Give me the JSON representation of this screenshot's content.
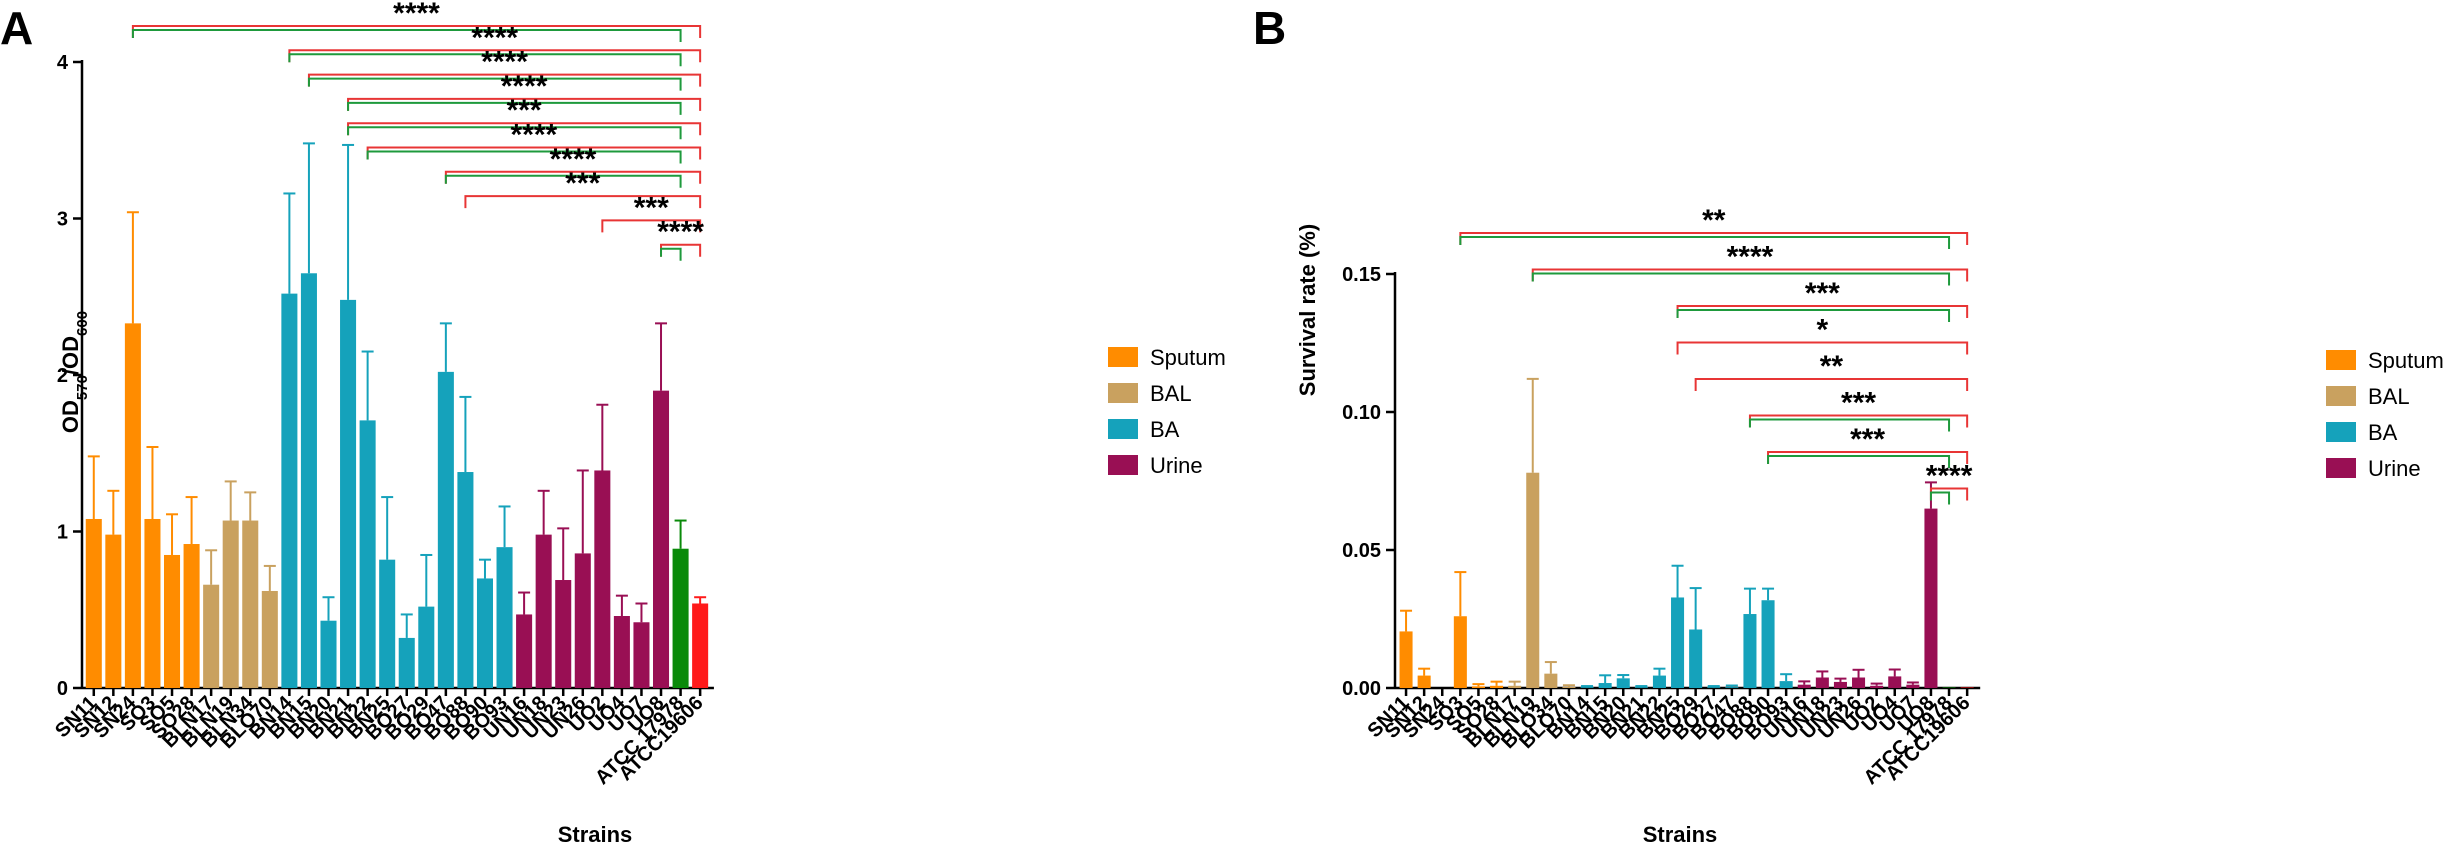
{
  "chart_data": [
    {
      "type": "bar",
      "panel": "A",
      "title": "",
      "xlabel": "Strains",
      "ylabel_main": "OD",
      "ylabel_sub1": "570",
      "ylabel_sep": "/OD",
      "ylabel_sub2": "600",
      "ylim": [
        0,
        4
      ],
      "yticks": [
        0,
        1,
        2,
        3,
        4
      ],
      "ytick_labels": [
        "0",
        "1",
        "2",
        "3",
        "4"
      ],
      "categories": [
        "SN11",
        "SN12",
        "SN24",
        "SO3",
        "SO5",
        "SO28",
        "BLN17",
        "BLN19",
        "BLN34",
        "BLO70",
        "BN14",
        "BN15",
        "BN20",
        "BN21",
        "BN22",
        "BN25",
        "BO27",
        "BO29",
        "BO47",
        "BO88",
        "BO90",
        "BO93",
        "UN16",
        "UN18",
        "UN23",
        "UN26",
        "UO2",
        "UO4",
        "UO7",
        "UO8",
        "ATCC 17978",
        "ATCC19606"
      ],
      "values": [
        1.08,
        0.98,
        2.33,
        1.08,
        0.85,
        0.92,
        0.66,
        1.07,
        1.07,
        0.62,
        2.52,
        2.65,
        0.43,
        2.48,
        1.71,
        0.82,
        0.32,
        0.52,
        2.02,
        1.38,
        0.7,
        0.9,
        0.47,
        0.98,
        0.69,
        0.86,
        1.39,
        0.46,
        0.42,
        1.9,
        0.89,
        0.54
      ],
      "errors": [
        0.4,
        0.28,
        0.71,
        0.46,
        0.26,
        0.3,
        0.22,
        0.25,
        0.18,
        0.16,
        0.64,
        0.83,
        0.15,
        0.99,
        0.44,
        0.4,
        0.15,
        0.33,
        0.31,
        0.48,
        0.12,
        0.26,
        0.14,
        0.28,
        0.33,
        0.53,
        0.42,
        0.13,
        0.12,
        0.43,
        0.18,
        0.04
      ],
      "groups": [
        "Sputum",
        "Sputum",
        "Sputum",
        "Sputum",
        "Sputum",
        "Sputum",
        "BAL",
        "BAL",
        "BAL",
        "BAL",
        "BA",
        "BA",
        "BA",
        "BA",
        "BA",
        "BA",
        "BA",
        "BA",
        "BA",
        "BA",
        "BA",
        "BA",
        "Urine",
        "Urine",
        "Urine",
        "Urine",
        "Urine",
        "Urine",
        "Urine",
        "Urine",
        "Control1",
        "Control2"
      ],
      "significance": [
        {
          "from": "SN24",
          "label": "****",
          "green": true
        },
        {
          "from": "BN14",
          "label": "****",
          "green": true
        },
        {
          "from": "BN15",
          "label": "****",
          "green": true
        },
        {
          "from": "BN21",
          "label": "****",
          "green": true
        },
        {
          "from": "BN21",
          "label": "***",
          "green": true
        },
        {
          "from": "BN22",
          "label": "****",
          "green": true
        },
        {
          "from": "BO47",
          "label": "****",
          "green": true
        },
        {
          "from": "BO88",
          "label": "***",
          "green": false
        },
        {
          "from": "UO2",
          "label": "***",
          "green": false
        },
        {
          "from": "UO8",
          "label": "****",
          "green": true
        }
      ]
    },
    {
      "type": "bar",
      "panel": "B",
      "title": "",
      "xlabel": "Strains",
      "ylabel": "Survival rate (%)",
      "ylim": [
        0,
        0.15
      ],
      "yticks": [
        0,
        0.05,
        0.1,
        0.15
      ],
      "ytick_labels": [
        "0.00",
        "0.05",
        "0.10",
        "0.15"
      ],
      "categories": [
        "SN11",
        "SN12",
        "SN24",
        "SO3",
        "SO5",
        "SO28",
        "BLN17",
        "BLN19",
        "BLO34",
        "BLO70",
        "BN14",
        "BN15",
        "BN20",
        "BN21",
        "BN22",
        "BN25",
        "BO29",
        "BO27",
        "BO47",
        "BO88",
        "BO90",
        "BO93",
        "UN16",
        "UN18",
        "UN23",
        "UN26",
        "UO2",
        "UO4",
        "UO7",
        "UO8",
        "ATCC 17978",
        "ATCC19606"
      ],
      "values": [
        0.0205,
        0.0045,
        0.0,
        0.026,
        0.0006,
        0.0008,
        0.0008,
        0.078,
        0.0052,
        0.0004,
        0.0003,
        0.0018,
        0.0035,
        0.0003,
        0.0045,
        0.0328,
        0.0212,
        0.0003,
        0.0003,
        0.0268,
        0.0318,
        0.0025,
        0.0012,
        0.0038,
        0.0022,
        0.0038,
        0.0008,
        0.0042,
        0.0012,
        0.065,
        0.0002,
        0.0002
      ],
      "errors": [
        0.0075,
        0.0025,
        0.0,
        0.016,
        0.0008,
        0.0015,
        0.0015,
        0.034,
        0.0042,
        0.0006,
        0.0004,
        0.0028,
        0.0012,
        0.0004,
        0.0025,
        0.0115,
        0.015,
        0.0004,
        0.0006,
        0.0092,
        0.0042,
        0.0025,
        0.0012,
        0.0022,
        0.0012,
        0.0028,
        0.0008,
        0.0025,
        0.0008,
        0.0095,
        0.0,
        0.0
      ],
      "groups": [
        "Sputum",
        "Sputum",
        "Sputum",
        "Sputum",
        "Sputum",
        "Sputum",
        "BAL",
        "BAL",
        "BAL",
        "BAL",
        "BA",
        "BA",
        "BA",
        "BA",
        "BA",
        "BA",
        "BA",
        "BA",
        "BA",
        "BA",
        "BA",
        "BA",
        "Urine",
        "Urine",
        "Urine",
        "Urine",
        "Urine",
        "Urine",
        "Urine",
        "Urine",
        "Control1",
        "Control2"
      ],
      "significance": [
        {
          "from": "SO3",
          "label": "**",
          "green": true
        },
        {
          "from": "BLN19",
          "label": "****",
          "green": true
        },
        {
          "from": "BN25",
          "label": "***",
          "green": true
        },
        {
          "from": "BN25",
          "label": "*",
          "green": false
        },
        {
          "from": "BO29",
          "label": "**",
          "green": false
        },
        {
          "from": "BO88",
          "label": "***",
          "green": true
        },
        {
          "from": "BO90",
          "label": "***",
          "green": true
        },
        {
          "from": "UO8",
          "label": "****",
          "green": true
        }
      ]
    }
  ],
  "panel_labels": {
    "a": "A",
    "b": "B"
  },
  "legend": [
    {
      "name": "Sputum",
      "color": "#ff8c00"
    },
    {
      "name": "BAL",
      "color": "#c9a15f"
    },
    {
      "name": "BA",
      "color": "#15a2bb"
    },
    {
      "name": "Urine",
      "color": "#990f54"
    }
  ],
  "colors": {
    "Sputum": "#ff8c00",
    "BAL": "#c9a15f",
    "BA": "#15a2bb",
    "Urine": "#990f54",
    "Control1": "#0a8a0a",
    "Control2": "#ff1a1a",
    "bracket_red": "#e83535",
    "bracket_green": "#1e9a3c"
  }
}
